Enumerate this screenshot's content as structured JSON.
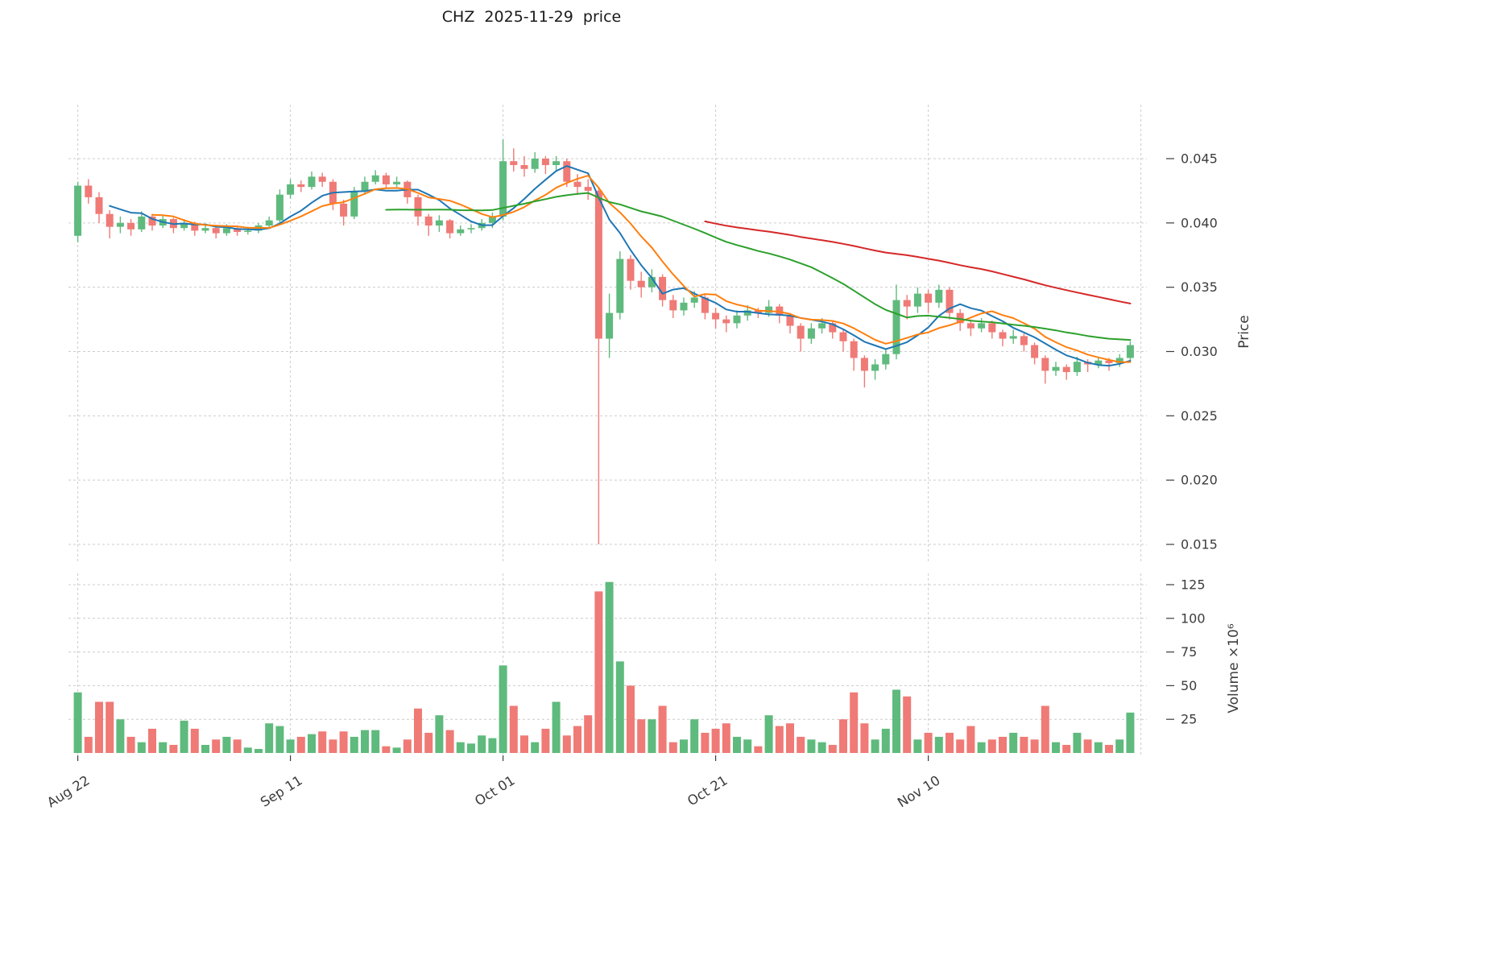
{
  "chart_data": {
    "type": "candlestick",
    "title": "CHZ  2025-11-29  price",
    "price_axis": {
      "label": "Price",
      "ticks": [
        0.015,
        0.02,
        0.025,
        0.03,
        0.035,
        0.04,
        0.045
      ],
      "range": [
        0.0135,
        0.0492
      ]
    },
    "volume_axis": {
      "label": "Volume ×10⁶",
      "ticks": [
        25,
        50,
        75,
        100,
        125
      ],
      "range": [
        0,
        133
      ],
      "unit": "10^6"
    },
    "x_ticks": [
      {
        "index": 0,
        "label": "Aug 22"
      },
      {
        "index": 20,
        "label": "Sep 11"
      },
      {
        "index": 40,
        "label": "Oct 01"
      },
      {
        "index": 60,
        "label": "Oct 21"
      },
      {
        "index": 80,
        "label": "Nov 10"
      }
    ],
    "colors": {
      "up": "#5fba7d",
      "down": "#ef7a76",
      "grid": "#cccccc",
      "text": "#3c3c3c",
      "ma_short": "#1f77b4",
      "ma_mid": "#ff7f0e",
      "ma_long": "#2ca02c",
      "ma_xlong": "#d62728"
    },
    "moving_averages": [
      {
        "name": "ma-short",
        "window": 7,
        "start_index": 3,
        "color": "#1f77b4"
      },
      {
        "name": "ma-mid",
        "window": 10,
        "start_index": 7,
        "color": "#ff7f0e"
      },
      {
        "name": "ma-long",
        "window": 30,
        "start_index": 29,
        "color": "#2ca02c"
      },
      {
        "name": "ma-xlong",
        "window": 60,
        "start_index": 59,
        "color": "#d62728"
      }
    ],
    "candles": [
      [
        "2025-08-22",
        0.039,
        0.0432,
        0.0385,
        0.0429,
        45
      ],
      [
        "2025-08-23",
        0.0429,
        0.0434,
        0.0415,
        0.042,
        12
      ],
      [
        "2025-08-24",
        0.042,
        0.0424,
        0.04,
        0.0407,
        38
      ],
      [
        "2025-08-25",
        0.0407,
        0.041,
        0.0388,
        0.0397,
        38
      ],
      [
        "2025-08-26",
        0.0397,
        0.0405,
        0.0392,
        0.04,
        25
      ],
      [
        "2025-08-27",
        0.04,
        0.0403,
        0.039,
        0.0395,
        12
      ],
      [
        "2025-08-28",
        0.0395,
        0.0409,
        0.0393,
        0.0405,
        8
      ],
      [
        "2025-08-29",
        0.0405,
        0.0407,
        0.0394,
        0.0398,
        18
      ],
      [
        "2025-08-30",
        0.0398,
        0.0406,
        0.0396,
        0.0403,
        8
      ],
      [
        "2025-08-31",
        0.0403,
        0.0404,
        0.0392,
        0.0396,
        6
      ],
      [
        "2025-09-01",
        0.0396,
        0.0403,
        0.0394,
        0.04,
        24
      ],
      [
        "2025-09-02",
        0.04,
        0.0401,
        0.039,
        0.0394,
        18
      ],
      [
        "2025-09-03",
        0.0394,
        0.0399,
        0.0392,
        0.0396,
        6
      ],
      [
        "2025-09-04",
        0.0396,
        0.0398,
        0.0388,
        0.0392,
        10
      ],
      [
        "2025-09-05",
        0.0392,
        0.0399,
        0.039,
        0.0396,
        12
      ],
      [
        "2025-09-06",
        0.0396,
        0.0398,
        0.039,
        0.0393,
        10
      ],
      [
        "2025-09-07",
        0.0393,
        0.0397,
        0.0391,
        0.0394,
        4
      ],
      [
        "2025-09-08",
        0.0394,
        0.04,
        0.0392,
        0.0398,
        3
      ],
      [
        "2025-09-09",
        0.0398,
        0.0405,
        0.0396,
        0.0402,
        22
      ],
      [
        "2025-09-10",
        0.0402,
        0.0426,
        0.04,
        0.0422,
        20
      ],
      [
        "2025-09-11",
        0.0422,
        0.0434,
        0.0419,
        0.043,
        10
      ],
      [
        "2025-09-12",
        0.043,
        0.0433,
        0.0424,
        0.0428,
        12
      ],
      [
        "2025-09-13",
        0.0428,
        0.044,
        0.0426,
        0.0436,
        14
      ],
      [
        "2025-09-14",
        0.0436,
        0.0439,
        0.0428,
        0.0432,
        16
      ],
      [
        "2025-09-15",
        0.0432,
        0.0434,
        0.041,
        0.0415,
        10
      ],
      [
        "2025-09-16",
        0.0415,
        0.0418,
        0.0398,
        0.0405,
        16
      ],
      [
        "2025-09-17",
        0.0405,
        0.0428,
        0.0403,
        0.0425,
        12
      ],
      [
        "2025-09-18",
        0.0425,
        0.0436,
        0.0422,
        0.0432,
        17
      ],
      [
        "2025-09-19",
        0.0432,
        0.0441,
        0.043,
        0.0437,
        17
      ],
      [
        "2025-09-20",
        0.0437,
        0.0439,
        0.0427,
        0.043,
        5
      ],
      [
        "2025-09-21",
        0.043,
        0.0436,
        0.0428,
        0.0432,
        4
      ],
      [
        "2025-09-22",
        0.0432,
        0.0433,
        0.0415,
        0.042,
        10
      ],
      [
        "2025-09-23",
        0.042,
        0.0422,
        0.0398,
        0.0405,
        33
      ],
      [
        "2025-09-24",
        0.0405,
        0.0407,
        0.039,
        0.0398,
        15
      ],
      [
        "2025-09-25",
        0.0398,
        0.0406,
        0.0393,
        0.0402,
        28
      ],
      [
        "2025-09-26",
        0.0402,
        0.0403,
        0.0388,
        0.0392,
        17
      ],
      [
        "2025-09-27",
        0.0392,
        0.0398,
        0.039,
        0.0395,
        8
      ],
      [
        "2025-09-28",
        0.0395,
        0.0399,
        0.0392,
        0.0396,
        7
      ],
      [
        "2025-09-29",
        0.0396,
        0.0403,
        0.0394,
        0.04,
        13
      ],
      [
        "2025-09-30",
        0.04,
        0.0408,
        0.0396,
        0.0405,
        11
      ],
      [
        "2025-10-01",
        0.0405,
        0.0465,
        0.0402,
        0.0448,
        65
      ],
      [
        "2025-10-02",
        0.0448,
        0.0458,
        0.044,
        0.0445,
        35
      ],
      [
        "2025-10-03",
        0.0445,
        0.0452,
        0.0436,
        0.0442,
        13
      ],
      [
        "2025-10-04",
        0.0442,
        0.0455,
        0.0439,
        0.045,
        8
      ],
      [
        "2025-10-05",
        0.045,
        0.0452,
        0.0438,
        0.0445,
        18
      ],
      [
        "2025-10-06",
        0.0445,
        0.0452,
        0.044,
        0.0448,
        38
      ],
      [
        "2025-10-07",
        0.0448,
        0.045,
        0.0428,
        0.0432,
        13
      ],
      [
        "2025-10-08",
        0.0432,
        0.0438,
        0.0422,
        0.0428,
        20
      ],
      [
        "2025-10-09",
        0.0428,
        0.0434,
        0.0418,
        0.0425,
        28
      ],
      [
        "2025-10-10",
        0.0425,
        0.0428,
        0.015,
        0.031,
        120
      ],
      [
        "2025-10-11",
        0.031,
        0.0345,
        0.0295,
        0.033,
        127
      ],
      [
        "2025-10-12",
        0.033,
        0.0378,
        0.0325,
        0.0372,
        68
      ],
      [
        "2025-10-13",
        0.0372,
        0.0375,
        0.0348,
        0.0355,
        50
      ],
      [
        "2025-10-14",
        0.0355,
        0.0362,
        0.0342,
        0.035,
        25
      ],
      [
        "2025-10-15",
        0.035,
        0.0364,
        0.0346,
        0.0358,
        25
      ],
      [
        "2025-10-16",
        0.0358,
        0.036,
        0.0335,
        0.034,
        35
      ],
      [
        "2025-10-17",
        0.034,
        0.0344,
        0.0326,
        0.0332,
        8
      ],
      [
        "2025-10-18",
        0.0332,
        0.0342,
        0.0328,
        0.0338,
        10
      ],
      [
        "2025-10-19",
        0.0338,
        0.0347,
        0.0334,
        0.0342,
        25
      ],
      [
        "2025-10-20",
        0.0342,
        0.0344,
        0.0325,
        0.033,
        15
      ],
      [
        "2025-10-21",
        0.033,
        0.0334,
        0.0318,
        0.0325,
        18
      ],
      [
        "2025-10-22",
        0.0325,
        0.0328,
        0.0315,
        0.0322,
        22
      ],
      [
        "2025-10-23",
        0.0322,
        0.0332,
        0.0318,
        0.0328,
        12
      ],
      [
        "2025-10-24",
        0.0328,
        0.0336,
        0.0324,
        0.0332,
        10
      ],
      [
        "2025-10-25",
        0.0332,
        0.0334,
        0.0326,
        0.033,
        5
      ],
      [
        "2025-10-26",
        0.033,
        0.034,
        0.0327,
        0.0335,
        28
      ],
      [
        "2025-10-27",
        0.0335,
        0.0337,
        0.0322,
        0.0328,
        20
      ],
      [
        "2025-10-28",
        0.0328,
        0.033,
        0.0314,
        0.032,
        22
      ],
      [
        "2025-10-29",
        0.032,
        0.0322,
        0.03,
        0.031,
        12
      ],
      [
        "2025-10-30",
        0.031,
        0.0322,
        0.0306,
        0.0318,
        10
      ],
      [
        "2025-10-31",
        0.0318,
        0.0326,
        0.0314,
        0.0322,
        8
      ],
      [
        "2025-11-01",
        0.0322,
        0.0324,
        0.031,
        0.0315,
        6
      ],
      [
        "2025-11-02",
        0.0315,
        0.0317,
        0.03,
        0.0308,
        25
      ],
      [
        "2025-11-03",
        0.0308,
        0.031,
        0.0285,
        0.0295,
        45
      ],
      [
        "2025-11-04",
        0.0295,
        0.0297,
        0.0272,
        0.0285,
        22
      ],
      [
        "2025-11-05",
        0.0285,
        0.0294,
        0.0278,
        0.029,
        10
      ],
      [
        "2025-11-06",
        0.029,
        0.0302,
        0.0286,
        0.0298,
        18
      ],
      [
        "2025-11-07",
        0.0298,
        0.0352,
        0.0294,
        0.034,
        47
      ],
      [
        "2025-11-08",
        0.034,
        0.0344,
        0.0325,
        0.0335,
        42
      ],
      [
        "2025-11-09",
        0.0335,
        0.035,
        0.033,
        0.0345,
        10
      ],
      [
        "2025-11-10",
        0.0345,
        0.0348,
        0.033,
        0.0338,
        15
      ],
      [
        "2025-11-11",
        0.0338,
        0.0352,
        0.0334,
        0.0348,
        12
      ],
      [
        "2025-11-12",
        0.0348,
        0.035,
        0.0325,
        0.033,
        15
      ],
      [
        "2025-11-13",
        0.033,
        0.0333,
        0.0316,
        0.0322,
        10
      ],
      [
        "2025-11-14",
        0.0322,
        0.0325,
        0.0312,
        0.0318,
        20
      ],
      [
        "2025-11-15",
        0.0318,
        0.0326,
        0.0315,
        0.0322,
        8
      ],
      [
        "2025-11-16",
        0.0322,
        0.0324,
        0.031,
        0.0315,
        10
      ],
      [
        "2025-11-17",
        0.0315,
        0.0317,
        0.0304,
        0.031,
        12
      ],
      [
        "2025-11-18",
        0.031,
        0.0317,
        0.0306,
        0.0312,
        15
      ],
      [
        "2025-11-19",
        0.0312,
        0.0314,
        0.03,
        0.0305,
        12
      ],
      [
        "2025-11-20",
        0.0305,
        0.0307,
        0.029,
        0.0295,
        10
      ],
      [
        "2025-11-21",
        0.0295,
        0.0297,
        0.0275,
        0.0285,
        35
      ],
      [
        "2025-11-22",
        0.0285,
        0.0292,
        0.0281,
        0.0288,
        8
      ],
      [
        "2025-11-23",
        0.0288,
        0.029,
        0.0278,
        0.0284,
        6
      ],
      [
        "2025-11-24",
        0.0284,
        0.0296,
        0.0281,
        0.0292,
        15
      ],
      [
        "2025-11-25",
        0.0292,
        0.0294,
        0.0284,
        0.029,
        10
      ],
      [
        "2025-11-26",
        0.029,
        0.0296,
        0.0287,
        0.0293,
        8
      ],
      [
        "2025-11-27",
        0.0293,
        0.0295,
        0.0285,
        0.0291,
        6
      ],
      [
        "2025-11-28",
        0.0291,
        0.0298,
        0.0288,
        0.0295,
        10
      ],
      [
        "2025-11-29",
        0.0295,
        0.0308,
        0.0292,
        0.0305,
        30
      ]
    ]
  }
}
